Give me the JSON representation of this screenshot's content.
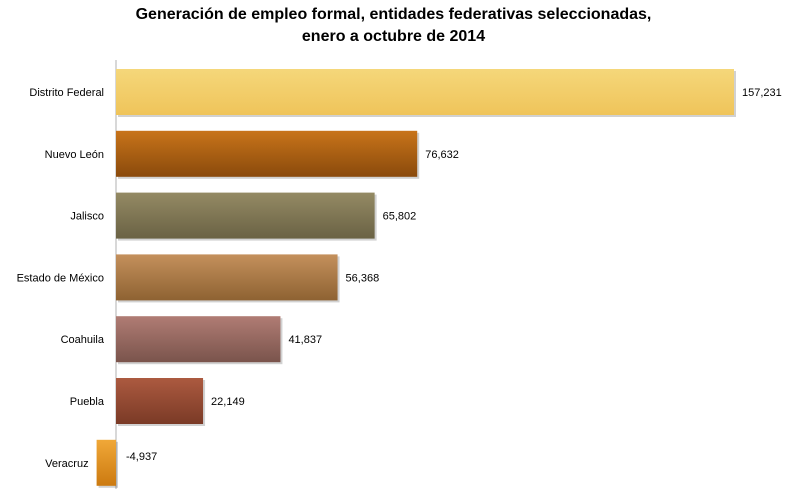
{
  "title_line1": "Generación de empleo formal, entidades federativas seleccionadas,",
  "title_line2": "enero a octubre de 2014",
  "chart_data": {
    "type": "bar",
    "orientation": "horizontal",
    "title": "Generación de empleo formal, entidades federativas seleccionadas, enero a octubre de 2014",
    "categories": [
      "Distrito Federal",
      "Nuevo León",
      "Jalisco",
      "Estado de México",
      "Coahuila",
      "Puebla",
      "Veracruz"
    ],
    "values": [
      157231,
      76632,
      65802,
      56368,
      41837,
      22149,
      -4937
    ],
    "value_labels": [
      "157,231",
      "76,632",
      "65,802",
      "56,368",
      "41,837",
      "22,149",
      "-4,937"
    ],
    "colors": [
      [
        "#f5d77a",
        "#efc45a"
      ],
      [
        "#c8741a",
        "#8a4a0c"
      ],
      [
        "#948a64",
        "#6a6244"
      ],
      [
        "#c4905c",
        "#8e6232"
      ],
      [
        "#b07c74",
        "#7a544c"
      ],
      [
        "#ac5a40",
        "#7a3a26"
      ],
      [
        "#f0a838",
        "#cc7a10"
      ]
    ],
    "grid": false,
    "legend": "none"
  }
}
